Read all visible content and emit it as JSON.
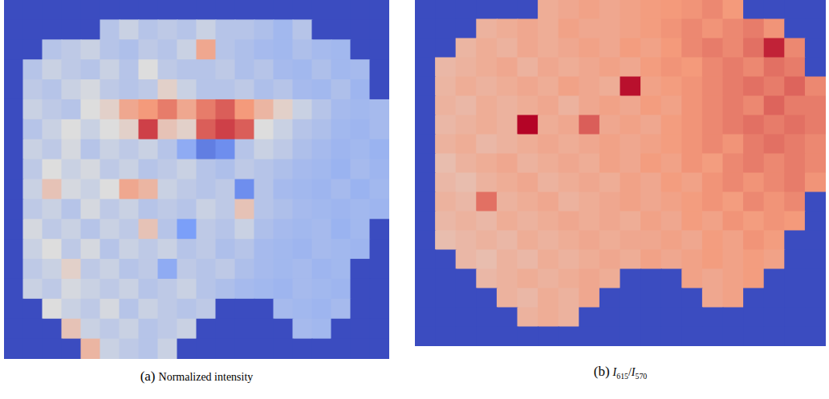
{
  "chart_data": [
    {
      "type": "heatmap",
      "label": "(a)",
      "title": "Normalized intensity",
      "tick_labels": false,
      "color_range": [
        0,
        1
      ],
      "cells": [
        [
          0,
          0,
          0,
          0,
          0,
          0,
          0,
          0,
          0,
          0,
          0,
          0,
          0,
          0,
          0,
          0,
          0,
          0,
          0,
          0
        ],
        [
          0,
          0,
          0,
          0,
          0,
          0.4,
          0.45,
          0.4,
          0.42,
          0.4,
          0.45,
          0.4,
          0.4,
          0.38,
          0.35,
          0.4,
          0,
          0,
          0,
          0
        ],
        [
          0,
          0,
          0.4,
          0.42,
          0.45,
          0.4,
          0.38,
          0.42,
          0.4,
          0.45,
          0.7,
          0.4,
          0.38,
          0.36,
          0.35,
          0.38,
          0.36,
          0.35,
          0,
          0
        ],
        [
          0,
          0.4,
          0.45,
          0.42,
          0.4,
          0.45,
          0.4,
          0.5,
          0.42,
          0.4,
          0.4,
          0.42,
          0.38,
          0.4,
          0.36,
          0.35,
          0.38,
          0.35,
          0.36,
          0
        ],
        [
          0,
          0.42,
          0.4,
          0.45,
          0.48,
          0.42,
          0.4,
          0.42,
          0.55,
          0.45,
          0.4,
          0.4,
          0.42,
          0.38,
          0.4,
          0.36,
          0.35,
          0.38,
          0.34,
          0
        ],
        [
          0,
          0.45,
          0.42,
          0.4,
          0.5,
          0.55,
          0.7,
          0.75,
          0.8,
          0.7,
          0.8,
          0.85,
          0.75,
          0.65,
          0.55,
          0.45,
          0.4,
          0.36,
          0.35,
          0.36
        ],
        [
          0,
          0.4,
          0.45,
          0.5,
          0.45,
          0.5,
          0.55,
          0.9,
          0.6,
          0.55,
          0.85,
          0.9,
          0.85,
          0.5,
          0.45,
          0.4,
          0.38,
          0.35,
          0.34,
          0.36
        ],
        [
          0,
          0.45,
          0.42,
          0.48,
          0.4,
          0.45,
          0.42,
          0.45,
          0.4,
          0.3,
          0.15,
          0.2,
          0.4,
          0.45,
          0.42,
          0.38,
          0.36,
          0.34,
          0.35,
          0.33
        ],
        [
          0,
          0.42,
          0.5,
          0.45,
          0.48,
          0.42,
          0.45,
          0.4,
          0.42,
          0.45,
          0.4,
          0.38,
          0.42,
          0.4,
          0.38,
          0.36,
          0.35,
          0.33,
          0.36,
          0.34
        ],
        [
          0,
          0.45,
          0.6,
          0.48,
          0.45,
          0.5,
          0.7,
          0.65,
          0.45,
          0.42,
          0.4,
          0.42,
          0.2,
          0.4,
          0.36,
          0.35,
          0.34,
          0.36,
          0.33,
          0.35
        ],
        [
          0,
          0.42,
          0.45,
          0.4,
          0.48,
          0.42,
          0.45,
          0.4,
          0.42,
          0.4,
          0.45,
          0.42,
          0.6,
          0.4,
          0.38,
          0.36,
          0.35,
          0.34,
          0.35,
          0.34
        ],
        [
          0,
          0.48,
          0.42,
          0.45,
          0.4,
          0.45,
          0.42,
          0.6,
          0.4,
          0.25,
          0.42,
          0.4,
          0.45,
          0.38,
          0.36,
          0.35,
          0.36,
          0.33,
          0.35,
          0
        ],
        [
          0,
          0.45,
          0.5,
          0.42,
          0.48,
          0.4,
          0.45,
          0.42,
          0.45,
          0.4,
          0.42,
          0.38,
          0.4,
          0.36,
          0.35,
          0.34,
          0.36,
          0.35,
          0.34,
          0
        ],
        [
          0,
          0.42,
          0.45,
          0.55,
          0.42,
          0.45,
          0.4,
          0.42,
          0.3,
          0.42,
          0.4,
          0.42,
          0.38,
          0.36,
          0.35,
          0.36,
          0.34,
          0.35,
          0,
          0
        ],
        [
          0,
          0.45,
          0.42,
          0.48,
          0.45,
          0.42,
          0.45,
          0.4,
          0.42,
          0.45,
          0.4,
          0.38,
          0.36,
          0.35,
          0.34,
          0.36,
          0.35,
          0.34,
          0,
          0
        ],
        [
          0,
          0,
          0.5,
          0.45,
          0.42,
          0.48,
          0.4,
          0.45,
          0.42,
          0.4,
          0.42,
          0,
          0,
          0,
          0.36,
          0.35,
          0.34,
          0.36,
          0,
          0
        ],
        [
          0,
          0,
          0,
          0.6,
          0.45,
          0.42,
          0.45,
          0.4,
          0.42,
          0.45,
          0,
          0,
          0,
          0,
          0,
          0.36,
          0.35,
          0,
          0,
          0
        ],
        [
          0,
          0,
          0,
          0,
          0.65,
          0.45,
          0.42,
          0.4,
          0.45,
          0,
          0,
          0,
          0,
          0,
          0,
          0,
          0,
          0,
          0,
          0
        ]
      ]
    },
    {
      "type": "heatmap",
      "label": "(b)",
      "title": "I615/I570",
      "tick_labels": false,
      "color_range": [
        0,
        1
      ],
      "cells": [
        [
          0,
          0,
          0,
          0,
          0,
          0,
          0.68,
          0.7,
          0.72,
          0.7,
          0.72,
          0.74,
          0.75,
          0.76,
          0.78,
          0.75,
          0,
          0,
          0,
          0
        ],
        [
          0,
          0,
          0,
          0.66,
          0.68,
          0.7,
          0.68,
          0.72,
          0.7,
          0.7,
          0.72,
          0.74,
          0.76,
          0.78,
          0.76,
          0.78,
          0.8,
          0.76,
          0,
          0
        ],
        [
          0,
          0,
          0.65,
          0.68,
          0.66,
          0.7,
          0.68,
          0.7,
          0.72,
          0.7,
          0.74,
          0.72,
          0.75,
          0.78,
          0.8,
          0.78,
          0.82,
          0.95,
          0.78,
          0
        ],
        [
          0,
          0.64,
          0.66,
          0.68,
          0.7,
          0.66,
          0.7,
          0.68,
          0.7,
          0.72,
          0.7,
          0.74,
          0.76,
          0.75,
          0.78,
          0.8,
          0.78,
          0.82,
          0.8,
          0
        ],
        [
          0,
          0.65,
          0.68,
          0.66,
          0.68,
          0.7,
          0.68,
          0.72,
          0.7,
          0.68,
          0.98,
          0.72,
          0.74,
          0.76,
          0.78,
          0.8,
          0.82,
          0.8,
          0.84,
          0.78
        ],
        [
          0,
          0.66,
          0.64,
          0.68,
          0.66,
          0.68,
          0.7,
          0.66,
          0.7,
          0.72,
          0.7,
          0.74,
          0.72,
          0.76,
          0.78,
          0.8,
          0.78,
          0.84,
          0.8,
          0.8
        ],
        [
          0,
          0.64,
          0.66,
          0.68,
          0.66,
          1,
          0.68,
          0.7,
          0.85,
          0.7,
          0.72,
          0.7,
          0.74,
          0.76,
          0.78,
          0.8,
          0.82,
          0.8,
          0.82,
          0.8
        ],
        [
          0,
          0.66,
          0.68,
          0.64,
          0.66,
          0.68,
          0.7,
          0.68,
          0.7,
          0.72,
          0.7,
          0.72,
          0.74,
          0.76,
          0.78,
          0.76,
          0.8,
          0.82,
          0.8,
          0.78
        ],
        [
          0,
          0.62,
          0.66,
          0.68,
          0.7,
          0.66,
          0.68,
          0.7,
          0.68,
          0.72,
          0.7,
          0.74,
          0.72,
          0.76,
          0.74,
          0.78,
          0.8,
          0.78,
          0.8,
          0.78
        ],
        [
          0,
          0.64,
          0.62,
          0.66,
          0.68,
          0.7,
          0.66,
          0.68,
          0.7,
          0.68,
          0.72,
          0.7,
          0.74,
          0.72,
          0.76,
          0.78,
          0.76,
          0.78,
          0.8,
          0.76
        ],
        [
          0,
          0.66,
          0.64,
          0.82,
          0.66,
          0.68,
          0.7,
          0.66,
          0.68,
          0.7,
          0.72,
          0.7,
          0.72,
          0.74,
          0.76,
          0.74,
          0.78,
          0.76,
          0.78,
          0
        ],
        [
          0,
          0.64,
          0.66,
          0.64,
          0.68,
          0.66,
          0.68,
          0.7,
          0.68,
          0.7,
          0.68,
          0.72,
          0.7,
          0.74,
          0.72,
          0.76,
          0.74,
          0.76,
          0.75,
          0
        ],
        [
          0,
          0.62,
          0.64,
          0.66,
          0.64,
          0.68,
          0.66,
          0.68,
          0.7,
          0.68,
          0.7,
          0.7,
          0.72,
          0.7,
          0.74,
          0.72,
          0.76,
          0.74,
          0,
          0
        ],
        [
          0,
          0,
          0.64,
          0.62,
          0.66,
          0.64,
          0.68,
          0.66,
          0.68,
          0.7,
          0.68,
          0.72,
          0.7,
          0.72,
          0.74,
          0.72,
          0.74,
          0.72,
          0,
          0
        ],
        [
          0,
          0,
          0,
          0.64,
          0.66,
          0.68,
          0.66,
          0.68,
          0.7,
          0.68,
          0,
          0,
          0,
          0.72,
          0.7,
          0.72,
          0.74,
          0,
          0,
          0
        ],
        [
          0,
          0,
          0,
          0,
          0.66,
          0.64,
          0.68,
          0.66,
          0.7,
          0,
          0,
          0,
          0,
          0,
          0.7,
          0.72,
          0,
          0,
          0,
          0
        ],
        [
          0,
          0,
          0,
          0,
          0,
          0.66,
          0.68,
          0.66,
          0,
          0,
          0,
          0,
          0,
          0,
          0,
          0,
          0,
          0,
          0,
          0
        ],
        [
          0,
          0,
          0,
          0,
          0,
          0,
          0,
          0,
          0,
          0,
          0,
          0,
          0,
          0,
          0,
          0,
          0,
          0,
          0,
          0
        ]
      ]
    }
  ]
}
